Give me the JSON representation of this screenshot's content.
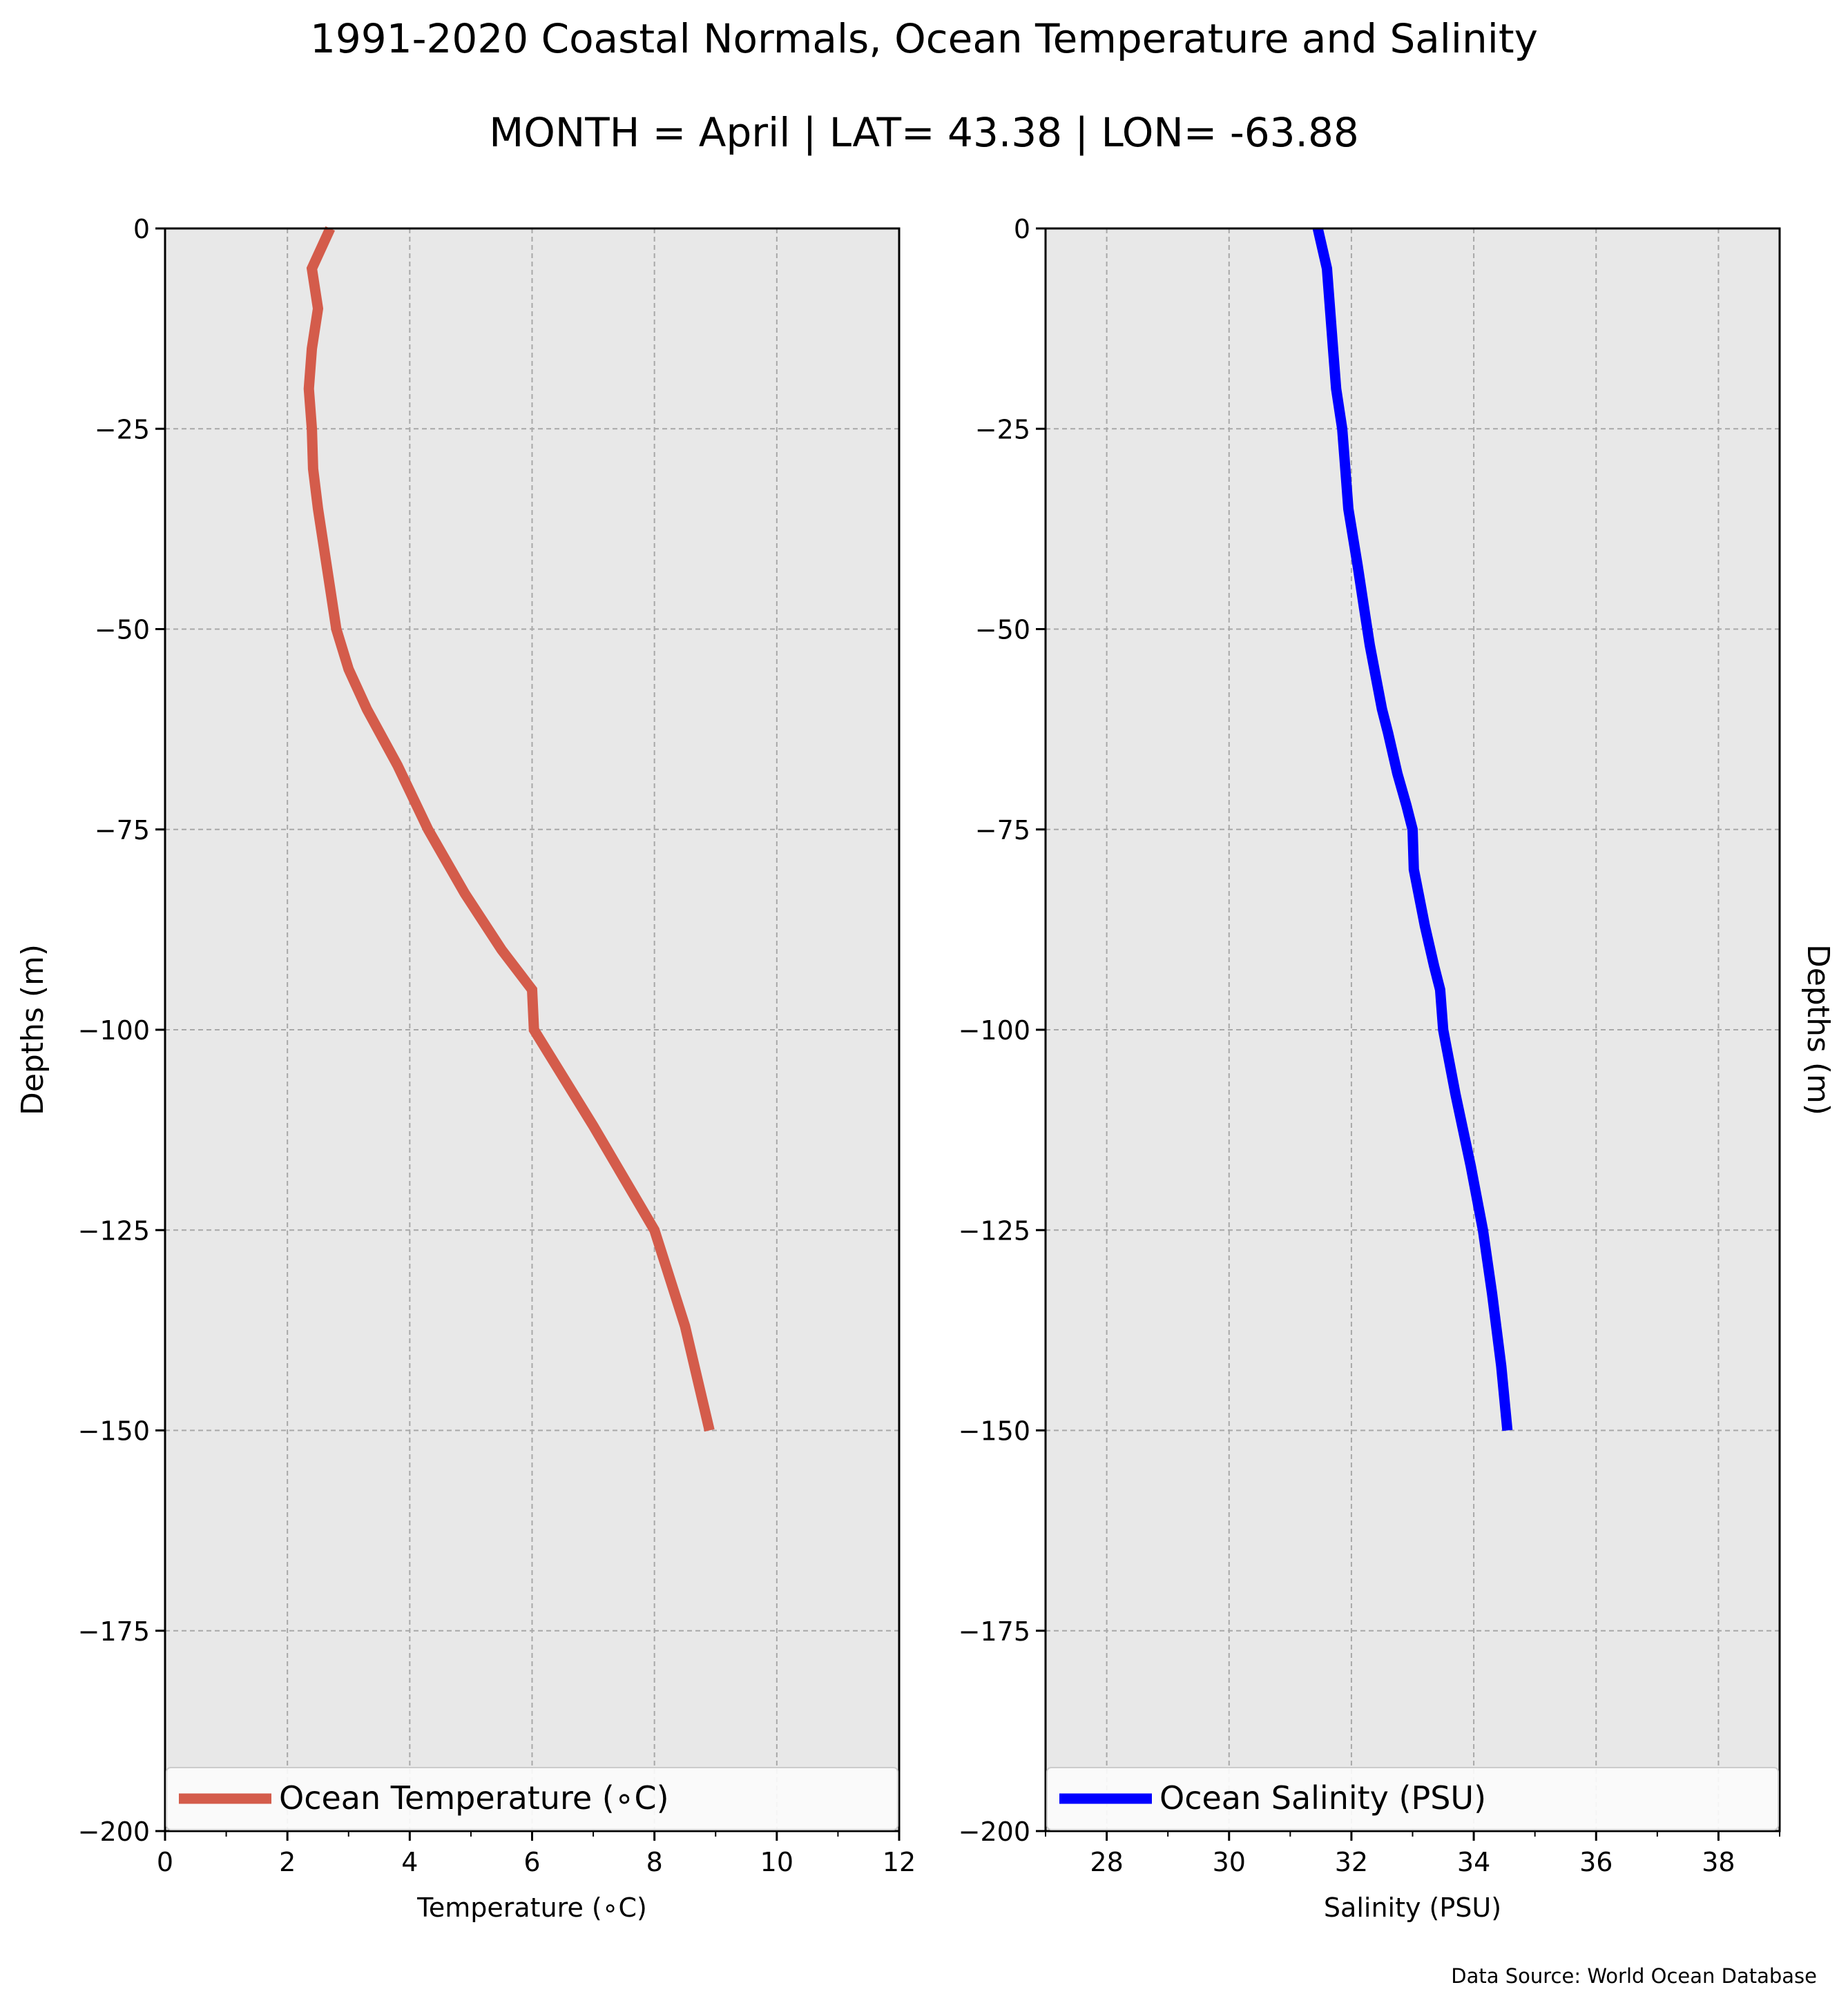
{
  "chart_data": {
    "title": "1991-2020 Coastal Normals, Ocean Temperature and Salinity",
    "subtitle": "MONTH = April | LAT= 43.38 | LON= -63.88",
    "source": "Data Source: World Ocean Database",
    "grid": true,
    "panels": [
      {
        "type": "line",
        "xlabel": "Temperature (∘C)",
        "ylabel": "Depths (m)",
        "ylabel_side": "left",
        "xlim": [
          0,
          12
        ],
        "ylim": [
          -200,
          0
        ],
        "xticks": [
          0,
          2,
          4,
          6,
          8,
          10,
          12
        ],
        "xtick_labels": [
          "0",
          "2",
          "4",
          "6",
          "8",
          "10",
          "12"
        ],
        "yticks": [
          0,
          -25,
          -50,
          -75,
          -100,
          -125,
          -150,
          -175,
          -200
        ],
        "ytick_labels": [
          "0",
          "−25",
          "−50",
          "−75",
          "−100",
          "−125",
          "−150",
          "−175",
          "−200"
        ],
        "legend_position": "lower-left",
        "colors": {
          "line": "#d45c4b",
          "background": "#e8e8e8"
        },
        "series": [
          {
            "name": "Ocean Temperature (∘C)",
            "points": [
              [
                2.7,
                0
              ],
              [
                2.4,
                -5
              ],
              [
                2.5,
                -10
              ],
              [
                2.4,
                -15
              ],
              [
                2.35,
                -20
              ],
              [
                2.4,
                -25
              ],
              [
                2.42,
                -30
              ],
              [
                2.5,
                -35
              ],
              [
                2.7,
                -45
              ],
              [
                2.8,
                -50
              ],
              [
                3.0,
                -55
              ],
              [
                3.3,
                -60
              ],
              [
                3.8,
                -67
              ],
              [
                4.3,
                -75
              ],
              [
                4.9,
                -83
              ],
              [
                5.5,
                -90
              ],
              [
                6.0,
                -95
              ],
              [
                6.03,
                -100
              ],
              [
                7.0,
                -112
              ],
              [
                8.0,
                -125
              ],
              [
                8.5,
                -137
              ],
              [
                8.9,
                -150
              ]
            ]
          }
        ]
      },
      {
        "type": "line",
        "xlabel": "Salinity (PSU)",
        "ylabel": "Depths (m)",
        "ylabel_side": "right",
        "xlim": [
          27,
          39
        ],
        "ylim": [
          -200,
          0
        ],
        "xticks": [
          28,
          30,
          32,
          34,
          36,
          38
        ],
        "xtick_labels": [
          "28",
          "30",
          "32",
          "34",
          "36",
          "38"
        ],
        "yticks": [
          0,
          -25,
          -50,
          -75,
          -100,
          -125,
          -150,
          -175,
          -200
        ],
        "ytick_labels": [
          "0",
          "−25",
          "−50",
          "−75",
          "−100",
          "−125",
          "−150",
          "−175",
          "−200"
        ],
        "legend_position": "lower-left",
        "colors": {
          "line": "#0000ff",
          "background": "#e8e8e8"
        },
        "series": [
          {
            "name": "Ocean Salinity (PSU)",
            "points": [
              [
                31.45,
                0
              ],
              [
                31.6,
                -5
              ],
              [
                31.65,
                -10
              ],
              [
                31.7,
                -15
              ],
              [
                31.75,
                -20
              ],
              [
                31.85,
                -25
              ],
              [
                31.9,
                -30
              ],
              [
                31.95,
                -35
              ],
              [
                32.1,
                -42
              ],
              [
                32.2,
                -47
              ],
              [
                32.3,
                -52
              ],
              [
                32.5,
                -60
              ],
              [
                32.6,
                -63
              ],
              [
                32.75,
                -68
              ],
              [
                32.9,
                -72
              ],
              [
                33.0,
                -75
              ],
              [
                33.02,
                -80
              ],
              [
                33.2,
                -87
              ],
              [
                33.35,
                -92
              ],
              [
                33.45,
                -95
              ],
              [
                33.5,
                -100
              ],
              [
                33.7,
                -108
              ],
              [
                33.95,
                -117
              ],
              [
                34.15,
                -125
              ],
              [
                34.3,
                -133
              ],
              [
                34.45,
                -142
              ],
              [
                34.55,
                -150
              ]
            ]
          }
        ]
      }
    ]
  }
}
